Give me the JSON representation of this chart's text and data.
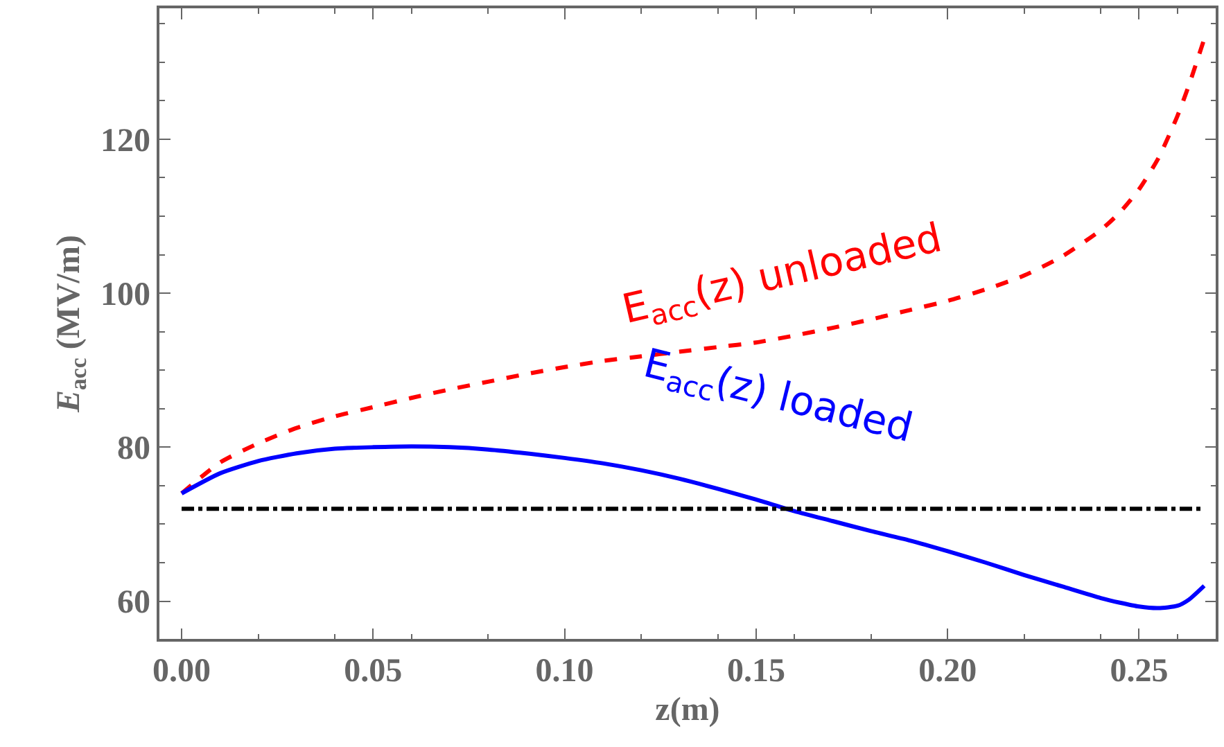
{
  "chart_data": {
    "type": "line",
    "xlabel": "z(m)",
    "ylabel": "E$_{acc}$ (MV/m)",
    "x": [
      0,
      0.01,
      0.02,
      0.03,
      0.04,
      0.05,
      0.06,
      0.07,
      0.08,
      0.09,
      0.1,
      0.11,
      0.12,
      0.13,
      0.14,
      0.15,
      0.16,
      0.17,
      0.18,
      0.19,
      0.2,
      0.21,
      0.22,
      0.23,
      0.24,
      0.245,
      0.25,
      0.255,
      0.26,
      0.263,
      0.267
    ],
    "series": [
      {
        "name": "E$_{acc}$(z) unloaded",
        "color": "#ff0000",
        "line_style": "dashed",
        "values": [
          74,
          78,
          80.5,
          82.5,
          84,
          85.2,
          86.4,
          87.5,
          88.5,
          89.5,
          90.4,
          91.2,
          91.8,
          92.4,
          93,
          93.6,
          94.5,
          95.5,
          96.6,
          97.8,
          99,
          100.5,
          102.3,
          104.8,
          108.2,
          110.5,
          113.5,
          117.5,
          123,
          127,
          133
        ]
      },
      {
        "name": "E$_{acc}$(z) loaded",
        "color": "#0000ff",
        "line_style": "solid",
        "values": [
          74,
          76.6,
          78.2,
          79.2,
          79.8,
          80,
          80.1,
          80,
          79.7,
          79.2,
          78.6,
          77.9,
          77,
          75.9,
          74.6,
          73.2,
          71.7,
          70.4,
          69.1,
          67.9,
          66.5,
          65,
          63.4,
          61.9,
          60.4,
          59.8,
          59.3,
          59.1,
          59.4,
          60.2,
          62
        ]
      }
    ],
    "ref_lines": [
      {
        "axis": "y",
        "value": 72,
        "color": "#000000",
        "line_style": "dashdot"
      }
    ],
    "xlim": [
      -0.0058,
      0.27
    ],
    "ylim": [
      55.1,
      137
    ],
    "xticks": [
      {
        "value": 0,
        "label": "0.00"
      },
      {
        "value": 0.05,
        "label": "0.05"
      },
      {
        "value": 0.1,
        "label": "0.10"
      },
      {
        "value": 0.15,
        "label": "0.15"
      },
      {
        "value": 0.2,
        "label": "0.20"
      },
      {
        "value": 0.25,
        "label": "0.25"
      }
    ],
    "yticks": [
      60,
      80,
      100,
      120
    ],
    "legend": false,
    "marker": "none"
  }
}
